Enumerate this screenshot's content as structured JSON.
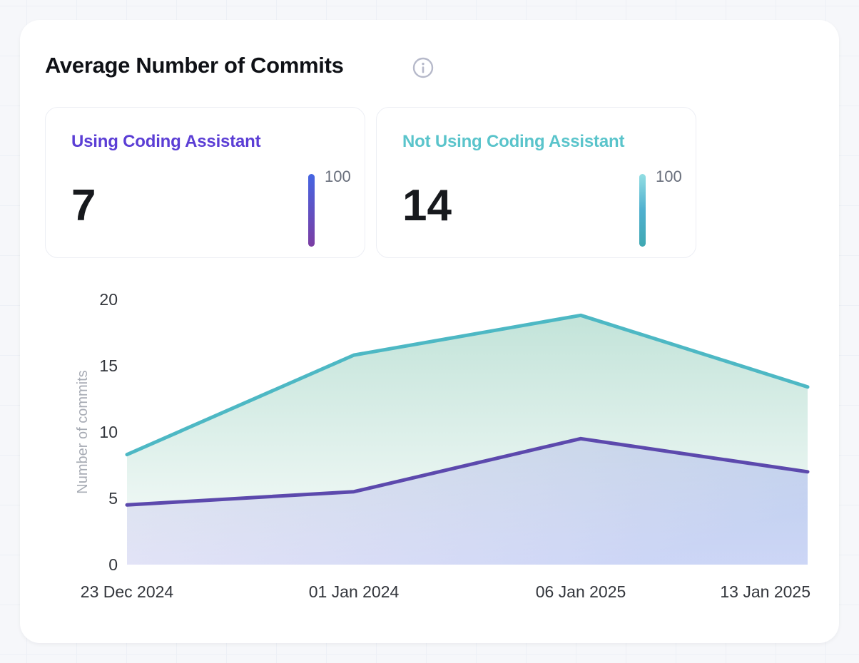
{
  "header": {
    "title": "Average Number of Commits",
    "info_icon": "info-circle",
    "info_icon_color": "#b6b9ca"
  },
  "stat_cards": [
    {
      "label": "Using Coding Assistant",
      "value": "7",
      "scale_max": "100",
      "accent": "#5b3ed5",
      "bar_gradient": [
        "#4565e2",
        "#7b3da3"
      ]
    },
    {
      "label": "Not Using Coding Assistant",
      "value": "14",
      "scale_max": "100",
      "accent": "#5ac4cb",
      "bar_gradient": [
        "#92dee3",
        "#4fb0cf",
        "#3fa8b2"
      ]
    }
  ],
  "chart_data": {
    "type": "area",
    "title": "Average Number of Commits",
    "xlabel": "",
    "ylabel": "Number of commits",
    "x": [
      "23 Dec 2024",
      "01 Jan 2024",
      "06 Jan 2025",
      "13 Jan 2025"
    ],
    "ylim": [
      0,
      20
    ],
    "yticks": [
      0,
      5,
      10,
      15,
      20
    ],
    "grid": false,
    "legend": "none",
    "axis_tick_color": "#33363c",
    "axis_title_color": "#a7abb4",
    "series": [
      {
        "name": "Not Using Coding Assistant",
        "color": "#4db8c4",
        "values": [
          8.3,
          15.8,
          18.8,
          13.4
        ],
        "fill_from": "rgba(121,194,171,0.45)",
        "fill_to": "rgba(121,194,171,0.04)",
        "fill_direction": "vertical"
      },
      {
        "name": "Using Coding Assistant",
        "color": "#5c49ad",
        "values": [
          4.5,
          5.5,
          9.5,
          7
        ],
        "fill_from": "rgba(171,152,229,0.15)",
        "fill_to": "rgba(142,160,238,0.42)",
        "fill_direction": "diagonal"
      }
    ]
  }
}
